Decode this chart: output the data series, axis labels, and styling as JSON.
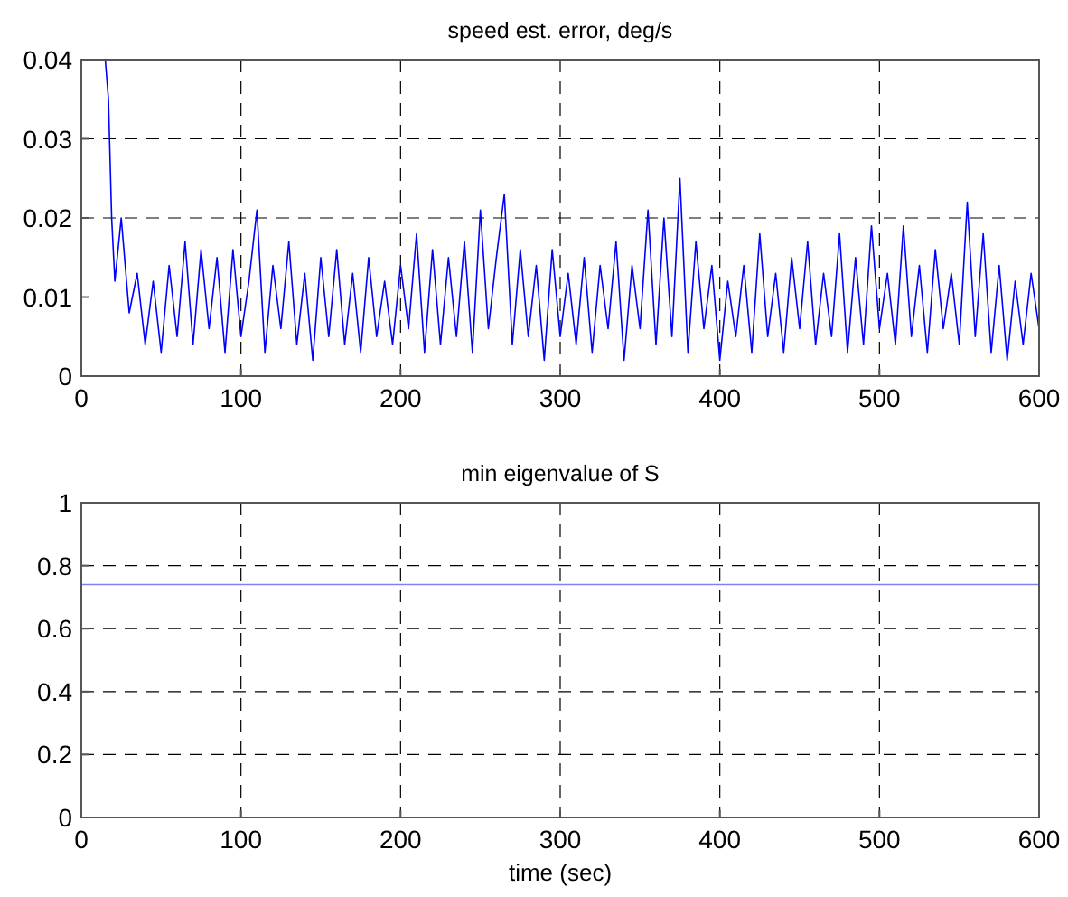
{
  "chart_data": [
    {
      "type": "line",
      "title": "speed est. error, deg/s",
      "xlim": [
        0,
        600
      ],
      "ylim": [
        0,
        0.04
      ],
      "xticks": [
        0,
        100,
        200,
        300,
        400,
        500,
        600
      ],
      "yticks": [
        0,
        0.01,
        0.02,
        0.03,
        0.04
      ],
      "grid": true,
      "x": [
        15,
        17,
        19,
        21,
        25,
        30,
        35,
        40,
        45,
        50,
        55,
        60,
        65,
        70,
        75,
        80,
        85,
        90,
        95,
        100,
        105,
        110,
        115,
        120,
        125,
        130,
        135,
        140,
        145,
        150,
        155,
        160,
        165,
        170,
        175,
        180,
        185,
        190,
        195,
        200,
        205,
        210,
        215,
        220,
        225,
        230,
        235,
        240,
        245,
        250,
        255,
        260,
        265,
        270,
        275,
        280,
        285,
        290,
        295,
        300,
        305,
        310,
        315,
        320,
        325,
        330,
        335,
        340,
        345,
        350,
        355,
        360,
        365,
        370,
        375,
        380,
        385,
        390,
        395,
        400,
        405,
        410,
        415,
        420,
        425,
        430,
        435,
        440,
        445,
        450,
        455,
        460,
        465,
        470,
        475,
        480,
        485,
        490,
        495,
        500,
        505,
        510,
        515,
        520,
        525,
        530,
        535,
        540,
        545,
        550,
        555,
        560,
        565,
        570,
        575,
        580,
        585,
        590,
        595,
        600
      ],
      "series": [
        {
          "color": "#0000ff",
          "values": [
            0.04,
            0.035,
            0.02,
            0.012,
            0.02,
            0.008,
            0.013,
            0.004,
            0.012,
            0.003,
            0.014,
            0.005,
            0.017,
            0.004,
            0.016,
            0.006,
            0.015,
            0.003,
            0.016,
            0.005,
            0.012,
            0.021,
            0.003,
            0.014,
            0.006,
            0.017,
            0.004,
            0.013,
            0.002,
            0.015,
            0.005,
            0.016,
            0.004,
            0.013,
            0.003,
            0.015,
            0.005,
            0.012,
            0.004,
            0.014,
            0.006,
            0.018,
            0.003,
            0.016,
            0.004,
            0.015,
            0.005,
            0.017,
            0.003,
            0.021,
            0.006,
            0.015,
            0.023,
            0.004,
            0.016,
            0.005,
            0.014,
            0.002,
            0.016,
            0.005,
            0.013,
            0.004,
            0.015,
            0.003,
            0.014,
            0.006,
            0.017,
            0.002,
            0.014,
            0.006,
            0.021,
            0.004,
            0.02,
            0.005,
            0.025,
            0.003,
            0.017,
            0.006,
            0.014,
            0.002,
            0.012,
            0.005,
            0.014,
            0.003,
            0.018,
            0.005,
            0.013,
            0.003,
            0.015,
            0.006,
            0.017,
            0.004,
            0.013,
            0.005,
            0.018,
            0.003,
            0.015,
            0.004,
            0.019,
            0.006,
            0.013,
            0.004,
            0.019,
            0.005,
            0.014,
            0.003,
            0.016,
            0.006,
            0.013,
            0.004,
            0.022,
            0.005,
            0.018,
            0.003,
            0.014,
            0.002,
            0.012,
            0.004,
            0.013,
            0.006
          ]
        }
      ]
    },
    {
      "type": "line",
      "title": "min eigenvalue of S",
      "xlabel": "time (sec)",
      "xlim": [
        0,
        600
      ],
      "ylim": [
        0,
        1
      ],
      "xticks": [
        0,
        100,
        200,
        300,
        400,
        500,
        600
      ],
      "yticks": [
        0,
        0.2,
        0.4,
        0.6,
        0.8,
        1
      ],
      "grid": true,
      "x": [
        0,
        600
      ],
      "series": [
        {
          "color": "#8080ff",
          "values": [
            0.74,
            0.74
          ]
        }
      ]
    }
  ]
}
